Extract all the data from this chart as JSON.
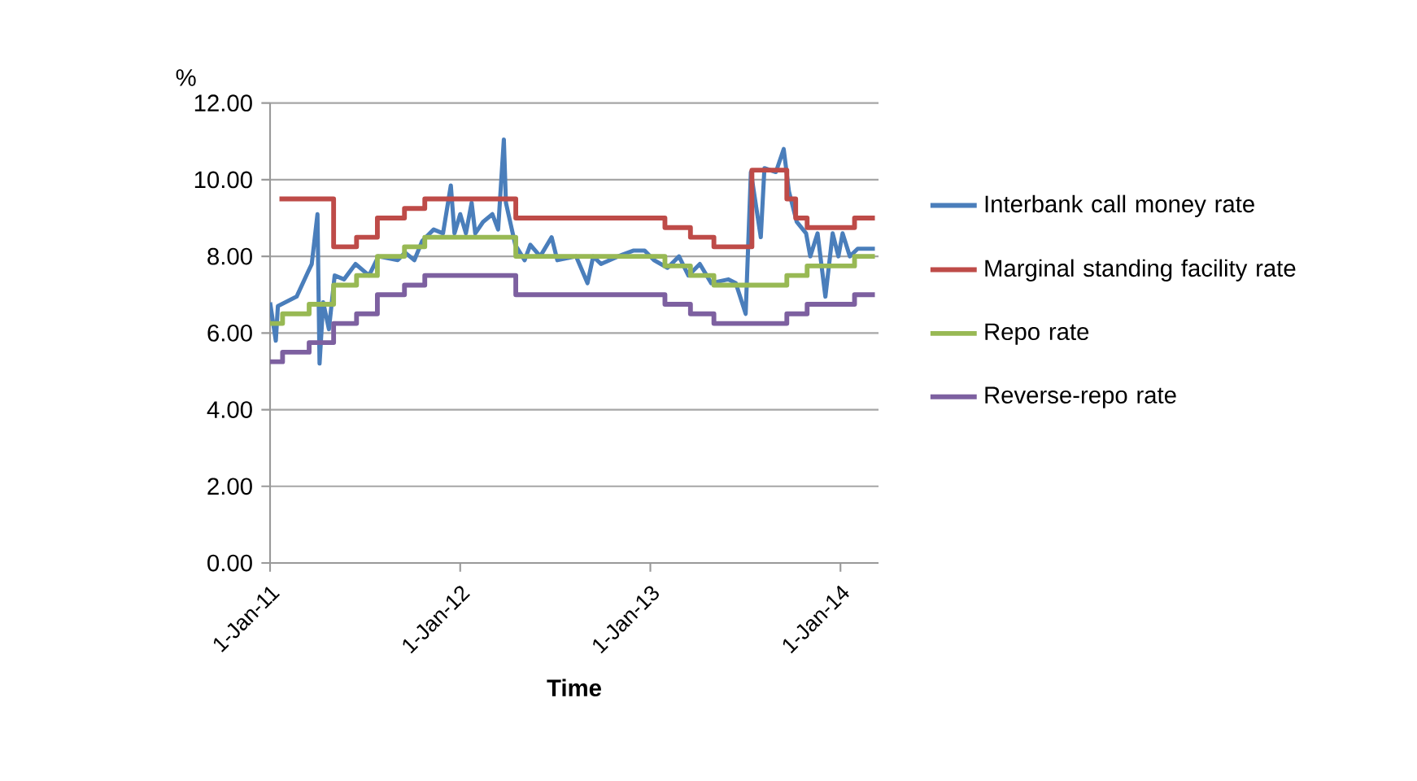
{
  "chart_data": {
    "type": "line",
    "xlabel": "Time",
    "ylabel": "%",
    "xlim": [
      "2011-01-01",
      "2014-03-15"
    ],
    "xticks": [
      {
        "value": "2011-01-01",
        "label": "1-Jan-11"
      },
      {
        "value": "2012-01-01",
        "label": "1-Jan-12"
      },
      {
        "value": "2013-01-01",
        "label": "1-Jan-13"
      },
      {
        "value": "2014-01-01",
        "label": "1-Jan-14"
      }
    ],
    "ylim": [
      0,
      12
    ],
    "yticks": [
      {
        "value": 0,
        "label": "0.00"
      },
      {
        "value": 2,
        "label": "2.00"
      },
      {
        "value": 4,
        "label": "4.00"
      },
      {
        "value": 6,
        "label": "6.00"
      },
      {
        "value": 8,
        "label": "8.00"
      },
      {
        "value": 10,
        "label": "10.00"
      },
      {
        "value": 12,
        "label": "12.00"
      }
    ],
    "grid": "y",
    "legend": "right",
    "series": [
      {
        "name": "Interbank call money rate",
        "color": "#4a7ebb",
        "x": [
          "2011-01-01",
          "2011-01-12",
          "2011-01-16",
          "2011-02-21",
          "2011-03-15",
          "2011-03-22",
          "2011-04-02",
          "2011-04-06",
          "2011-04-13",
          "2011-04-24",
          "2011-05-05",
          "2011-05-23",
          "2011-06-14",
          "2011-07-10",
          "2011-07-28",
          "2011-09-03",
          "2011-09-17",
          "2011-10-05",
          "2011-10-20",
          "2011-11-11",
          "2011-11-29",
          "2011-12-14",
          "2011-12-21",
          "2012-01-01",
          "2012-01-12",
          "2012-01-23",
          "2012-01-30",
          "2012-02-14",
          "2012-03-03",
          "2012-03-14",
          "2012-03-25",
          "2012-03-29",
          "2012-04-16",
          "2012-05-04",
          "2012-05-15",
          "2012-06-03",
          "2012-06-25",
          "2012-07-06",
          "2012-08-11",
          "2012-09-02",
          "2012-09-13",
          "2012-09-28",
          "2012-10-31",
          "2012-11-29",
          "2012-12-21",
          "2013-01-08",
          "2013-02-03",
          "2013-02-25",
          "2013-03-15",
          "2013-04-06",
          "2013-04-28",
          "2013-05-31",
          "2013-06-14",
          "2013-07-03",
          "2013-07-13",
          "2013-08-01",
          "2013-08-08",
          "2013-08-30",
          "2013-09-14",
          "2013-09-24",
          "2013-10-09",
          "2013-10-27",
          "2013-11-04",
          "2013-11-18",
          "2013-12-03",
          "2013-12-17",
          "2013-12-28",
          "2014-01-05",
          "2014-01-19",
          "2014-02-03",
          "2014-03-08"
        ],
        "values": [
          6.8,
          5.8,
          6.7,
          6.95,
          7.6,
          7.8,
          9.1,
          5.2,
          6.8,
          6.1,
          7.5,
          7.4,
          7.8,
          7.5,
          8.0,
          7.9,
          8.1,
          7.9,
          8.4,
          8.7,
          8.6,
          9.85,
          8.6,
          9.1,
          8.6,
          9.4,
          8.6,
          8.9,
          9.1,
          8.7,
          11.05,
          9.4,
          8.3,
          7.9,
          8.3,
          8.0,
          8.5,
          7.9,
          8.0,
          7.3,
          8.0,
          7.8,
          8.0,
          8.15,
          8.15,
          7.9,
          7.7,
          8.0,
          7.5,
          7.8,
          7.3,
          7.4,
          7.3,
          6.5,
          10.2,
          8.5,
          10.3,
          10.2,
          10.8,
          9.7,
          8.9,
          8.6,
          8.0,
          8.6,
          6.95,
          8.6,
          8.0,
          8.6,
          8.0,
          8.2,
          8.2
        ]
      },
      {
        "name": "Marginal standing facility rate",
        "type": "step",
        "color": "#be4b48",
        "x": [
          "2011-01-19",
          "2011-05-03",
          "2011-06-16",
          "2011-07-26",
          "2011-09-16",
          "2011-10-25",
          "2012-04-17",
          "2013-01-29",
          "2013-03-19",
          "2013-05-03",
          "2013-07-15",
          "2013-09-20",
          "2013-10-07",
          "2013-10-29",
          "2014-01-28",
          "2014-03-08"
        ],
        "values": [
          9.5,
          8.25,
          8.5,
          9.0,
          9.25,
          9.5,
          9.0,
          8.75,
          8.5,
          8.25,
          10.25,
          9.5,
          9.0,
          8.75,
          9.0,
          9.0
        ]
      },
      {
        "name": "Repo rate",
        "type": "step",
        "color": "#98b954",
        "x": [
          "2011-01-01",
          "2011-01-25",
          "2011-03-17",
          "2011-05-03",
          "2011-06-16",
          "2011-07-26",
          "2011-09-16",
          "2011-10-25",
          "2012-04-17",
          "2013-01-29",
          "2013-03-19",
          "2013-05-03",
          "2013-09-20",
          "2013-10-29",
          "2014-01-28",
          "2014-03-08"
        ],
        "values": [
          6.25,
          6.5,
          6.75,
          7.25,
          7.5,
          8.0,
          8.25,
          8.5,
          8.0,
          7.75,
          7.5,
          7.25,
          7.5,
          7.75,
          8.0,
          8.0
        ]
      },
      {
        "name": "Reverse-repo rate",
        "type": "step",
        "color": "#7d60a0",
        "x": [
          "2011-01-01",
          "2011-01-25",
          "2011-03-17",
          "2011-05-03",
          "2011-06-16",
          "2011-07-26",
          "2011-09-16",
          "2011-10-25",
          "2012-04-17",
          "2013-01-29",
          "2013-03-19",
          "2013-05-03",
          "2013-09-20",
          "2013-10-29",
          "2014-01-28",
          "2014-03-08"
        ],
        "values": [
          5.25,
          5.5,
          5.75,
          6.25,
          6.5,
          7.0,
          7.25,
          7.5,
          7.0,
          6.75,
          6.5,
          6.25,
          6.5,
          6.75,
          7.0,
          7.0
        ]
      }
    ]
  }
}
